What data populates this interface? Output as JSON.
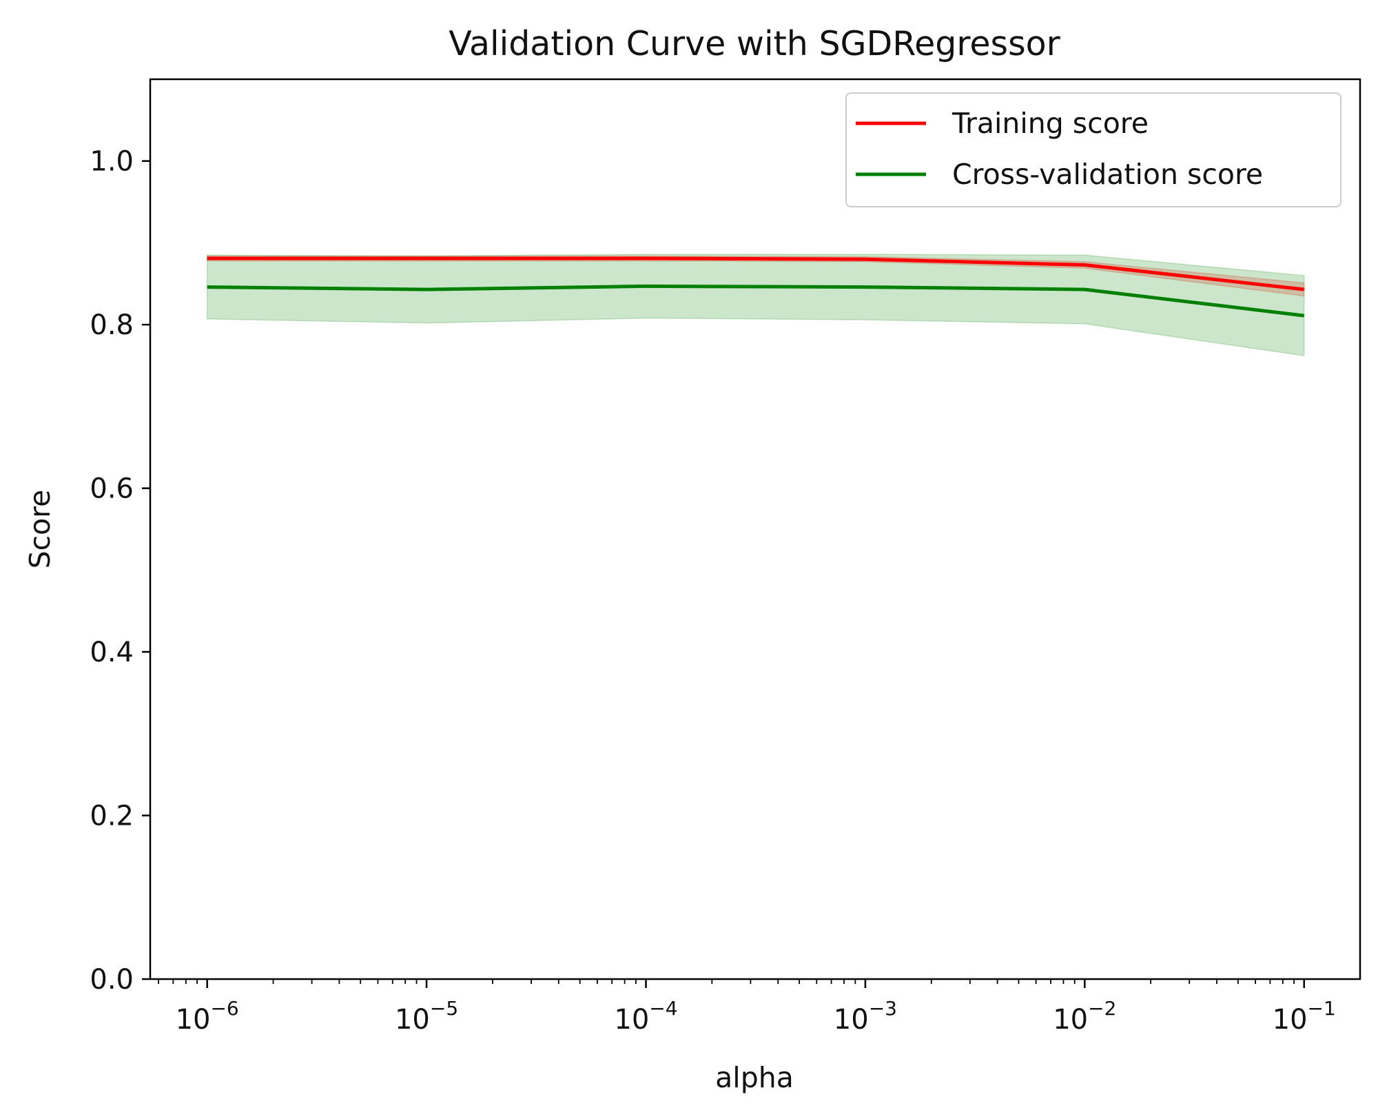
{
  "chart_data": {
    "type": "line",
    "title": "Validation Curve with SGDRegressor",
    "xlabel": "alpha",
    "ylabel": "Score",
    "x_scale": "log",
    "x": [
      1e-06,
      1e-05,
      0.0001,
      0.001,
      0.01,
      0.1
    ],
    "xlim": [
      5.5e-07,
      0.18
    ],
    "ylim": [
      0.0,
      1.1
    ],
    "x_ticks": [
      {
        "value": 1e-06,
        "base": "10",
        "exp": "−6"
      },
      {
        "value": 1e-05,
        "base": "10",
        "exp": "−5"
      },
      {
        "value": 0.0001,
        "base": "10",
        "exp": "−4"
      },
      {
        "value": 0.001,
        "base": "10",
        "exp": "−3"
      },
      {
        "value": 0.01,
        "base": "10",
        "exp": "−2"
      },
      {
        "value": 0.1,
        "base": "10",
        "exp": "−1"
      }
    ],
    "y_ticks": [
      {
        "value": 0.0,
        "label": "0.0"
      },
      {
        "value": 0.2,
        "label": "0.2"
      },
      {
        "value": 0.4,
        "label": "0.4"
      },
      {
        "value": 0.6,
        "label": "0.6"
      },
      {
        "value": 0.8,
        "label": "0.8"
      },
      {
        "value": 1.0,
        "label": "1.0"
      }
    ],
    "grid": false,
    "legend_position": "top-right",
    "series": [
      {
        "name": "Training score",
        "color": "#ff0000",
        "band_color": "#ff0000",
        "values": [
          0.881,
          0.881,
          0.881,
          0.88,
          0.873,
          0.843
        ],
        "band_low": [
          0.878,
          0.878,
          0.878,
          0.877,
          0.869,
          0.835
        ],
        "band_high": [
          0.884,
          0.884,
          0.884,
          0.883,
          0.877,
          0.851
        ]
      },
      {
        "name": "Cross-validation score",
        "color": "#008000",
        "band_color": "#008000",
        "values": [
          0.846,
          0.843,
          0.847,
          0.846,
          0.843,
          0.811
        ],
        "band_low": [
          0.807,
          0.802,
          0.808,
          0.806,
          0.801,
          0.762
        ],
        "band_high": [
          0.885,
          0.884,
          0.886,
          0.886,
          0.885,
          0.86
        ]
      }
    ]
  }
}
